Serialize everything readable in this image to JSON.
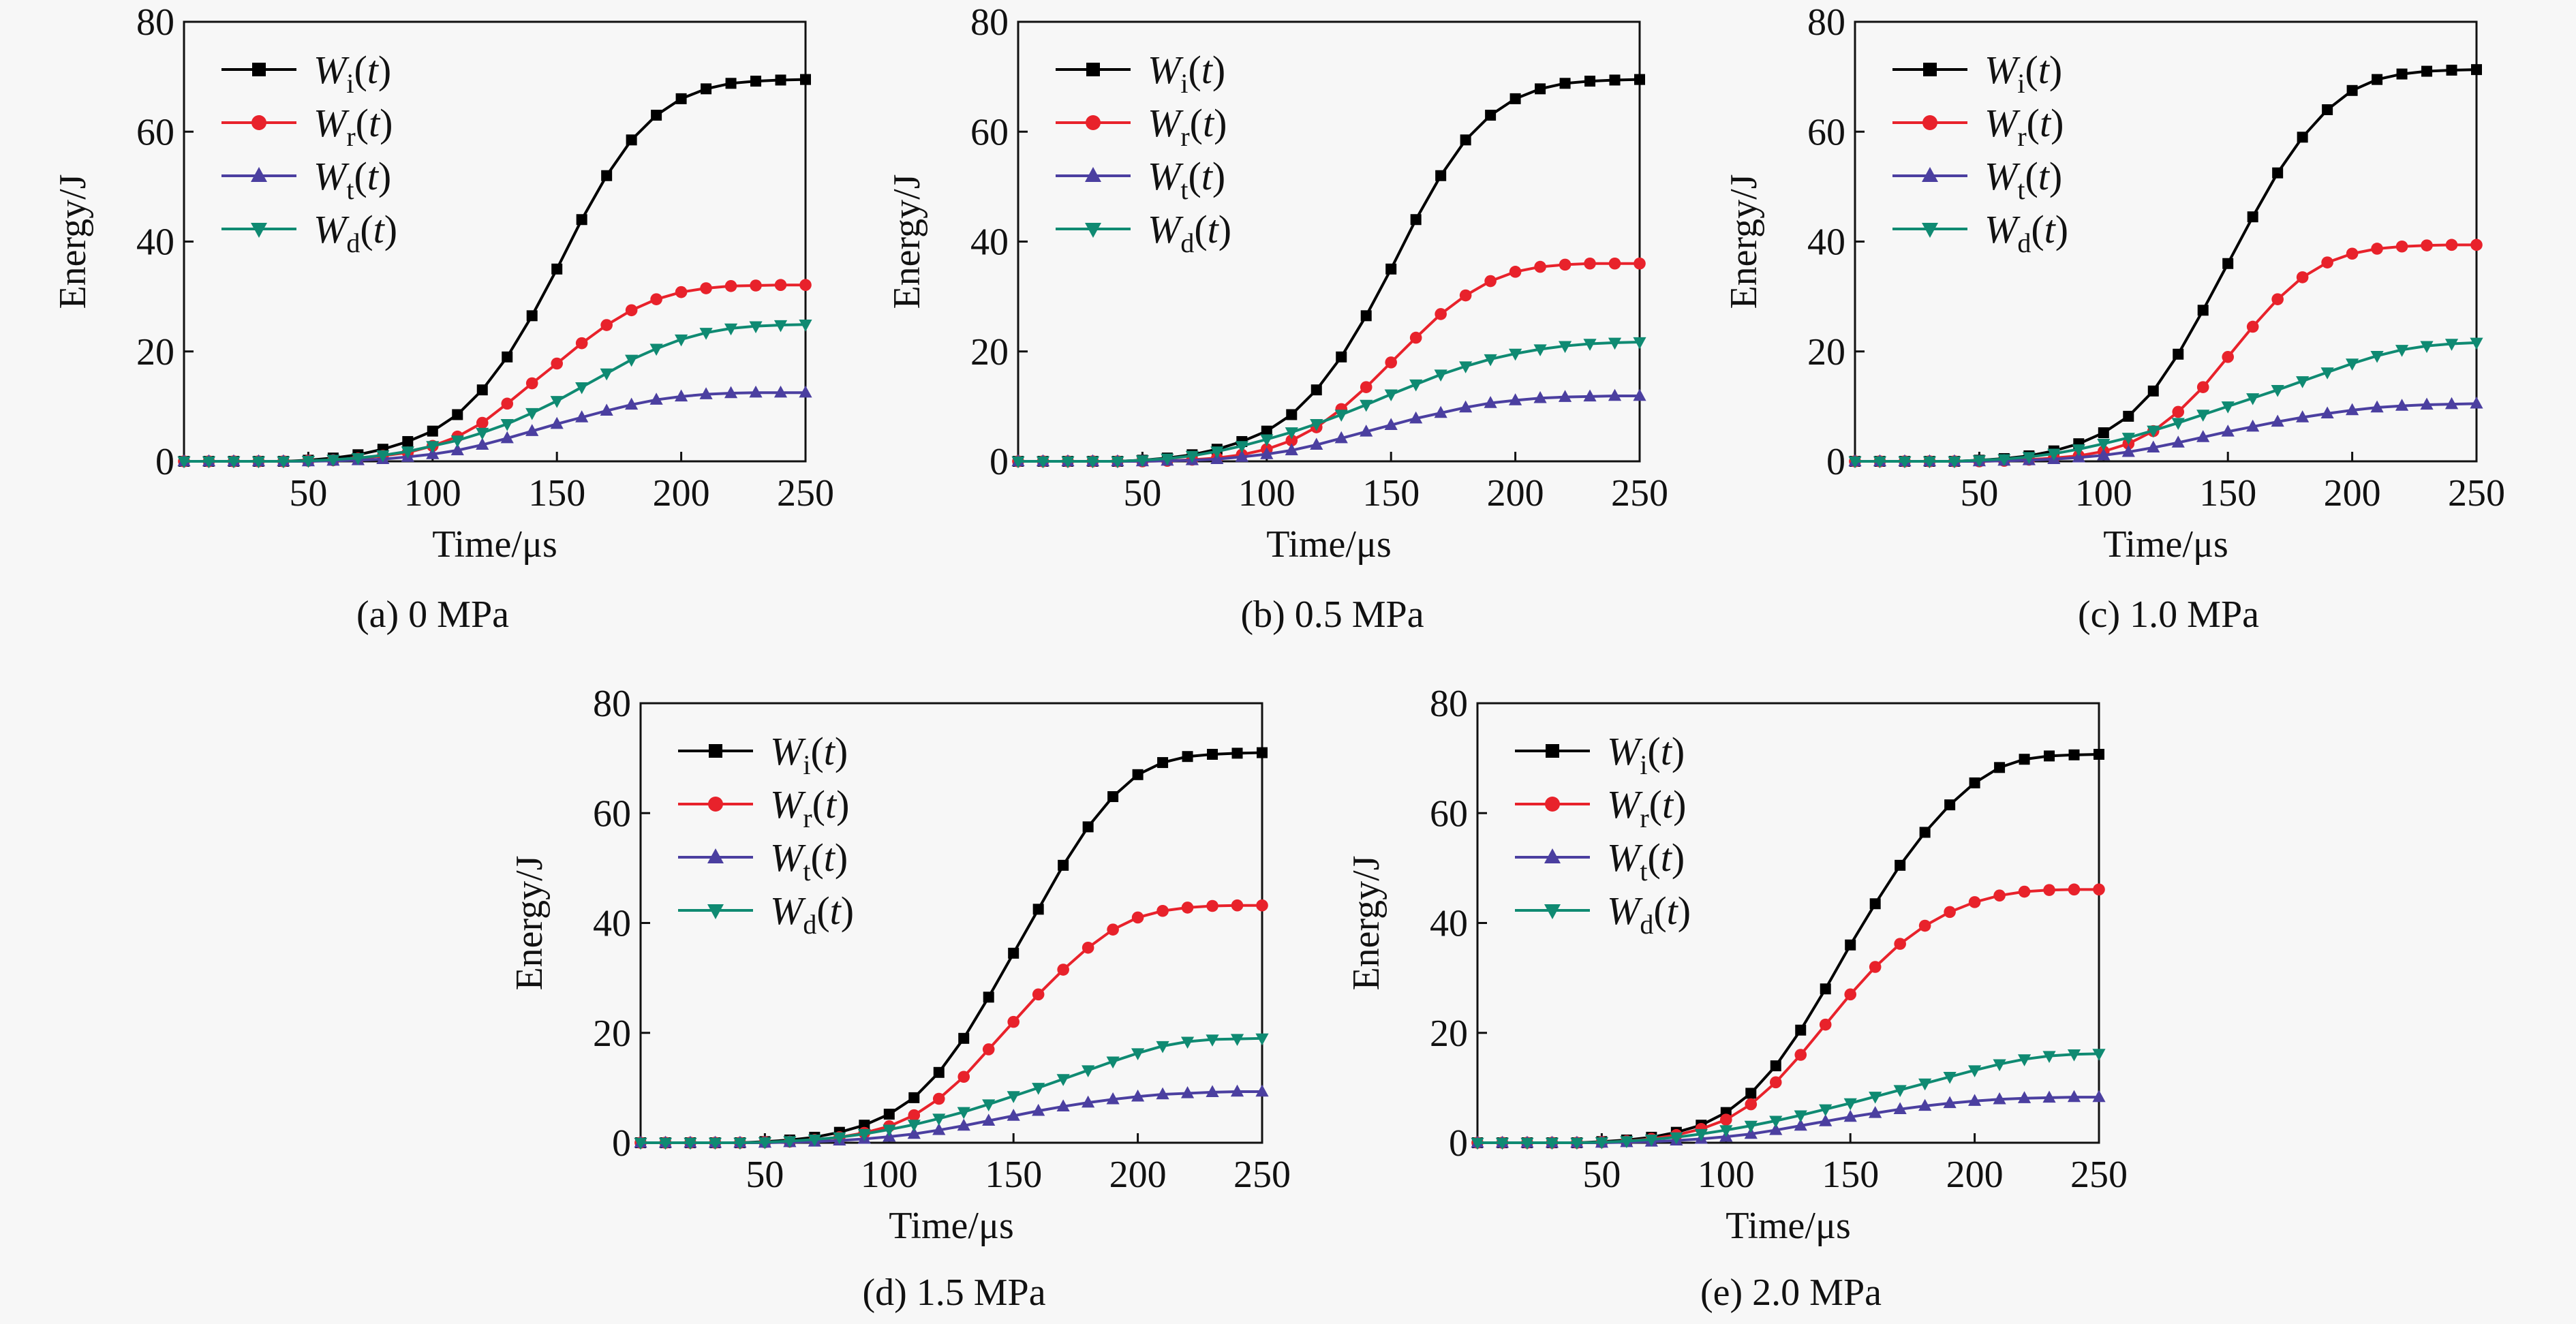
{
  "figure": {
    "legend_labels": [
      {
        "main": "W",
        "sub": "i",
        "arg": "t"
      },
      {
        "main": "W",
        "sub": "r",
        "arg": "t"
      },
      {
        "main": "W",
        "sub": "t",
        "arg": "t"
      },
      {
        "main": "W",
        "sub": "d",
        "arg": "t"
      }
    ],
    "colors": {
      "Wi": "#000000",
      "Wr": "#e8222b",
      "Wt": "#4b3fa0",
      "Wd": "#0f8a72"
    },
    "markers": {
      "Wi": "square",
      "Wr": "circle",
      "Wt": "triangle-up",
      "Wd": "triangle-down"
    }
  },
  "chart_data": [
    {
      "type": "line",
      "caption": "(a) 0 MPa",
      "xlabel": "Time/μs",
      "ylabel": "Energy/J",
      "xlim": [
        0,
        250
      ],
      "ylim": [
        0,
        80
      ],
      "xticks": [
        50,
        100,
        150,
        200,
        250
      ],
      "yticks": [
        0,
        20,
        40,
        60,
        80
      ],
      "x": [
        0,
        10,
        20,
        30,
        40,
        50,
        60,
        70,
        80,
        90,
        100,
        110,
        120,
        130,
        140,
        150,
        160,
        170,
        180,
        190,
        200,
        210,
        220,
        230,
        240,
        250
      ],
      "series": [
        {
          "key": "Wi",
          "values": [
            0,
            0,
            0,
            0,
            0,
            0.2,
            0.6,
            1.2,
            2.2,
            3.6,
            5.5,
            8.5,
            13.0,
            19.0,
            26.5,
            35.0,
            44.0,
            52.0,
            58.5,
            63.0,
            66.0,
            67.8,
            68.8,
            69.2,
            69.4,
            69.5
          ]
        },
        {
          "key": "Wr",
          "values": [
            0,
            0,
            0,
            0,
            0,
            0.1,
            0.2,
            0.5,
            1.0,
            1.6,
            2.8,
            4.5,
            7.0,
            10.5,
            14.2,
            17.8,
            21.5,
            24.8,
            27.5,
            29.5,
            30.8,
            31.5,
            31.9,
            32.0,
            32.1,
            32.1
          ]
        },
        {
          "key": "Wt",
          "values": [
            0,
            0,
            0,
            0,
            0,
            0,
            0.1,
            0.2,
            0.4,
            0.8,
            1.3,
            2.0,
            3.0,
            4.2,
            5.5,
            6.8,
            8.0,
            9.2,
            10.3,
            11.2,
            11.8,
            12.2,
            12.4,
            12.5,
            12.5,
            12.5
          ]
        },
        {
          "key": "Wd",
          "values": [
            0,
            0,
            0,
            0,
            0,
            0.1,
            0.3,
            0.6,
            1.1,
            1.8,
            2.8,
            3.8,
            5.2,
            6.8,
            8.8,
            11.0,
            13.5,
            16.0,
            18.5,
            20.5,
            22.2,
            23.4,
            24.2,
            24.6,
            24.8,
            24.9
          ]
        }
      ]
    },
    {
      "type": "line",
      "caption": "(b) 0.5 MPa",
      "xlabel": "Time/μs",
      "ylabel": "Energy/J",
      "xlim": [
        0,
        250
      ],
      "ylim": [
        0,
        80
      ],
      "xticks": [
        50,
        100,
        150,
        200,
        250
      ],
      "yticks": [
        0,
        20,
        40,
        60,
        80
      ],
      "x": [
        0,
        10,
        20,
        30,
        40,
        50,
        60,
        70,
        80,
        90,
        100,
        110,
        120,
        130,
        140,
        150,
        160,
        170,
        180,
        190,
        200,
        210,
        220,
        230,
        240,
        250
      ],
      "series": [
        {
          "key": "Wi",
          "values": [
            0,
            0,
            0,
            0,
            0,
            0.2,
            0.6,
            1.2,
            2.2,
            3.6,
            5.5,
            8.5,
            13.0,
            19.0,
            26.5,
            35.0,
            44.0,
            52.0,
            58.5,
            63.0,
            66.0,
            67.8,
            68.8,
            69.2,
            69.4,
            69.5
          ]
        },
        {
          "key": "Wr",
          "values": [
            0,
            0,
            0,
            0,
            0,
            0,
            0.1,
            0.3,
            0.6,
            1.2,
            2.2,
            3.8,
            6.2,
            9.5,
            13.5,
            18.0,
            22.5,
            26.8,
            30.2,
            32.8,
            34.5,
            35.4,
            35.8,
            36.0,
            36.0,
            36.0
          ]
        },
        {
          "key": "Wt",
          "values": [
            0,
            0,
            0,
            0,
            0,
            0,
            0.1,
            0.2,
            0.4,
            0.8,
            1.3,
            2.0,
            3.0,
            4.2,
            5.4,
            6.6,
            7.8,
            8.8,
            9.8,
            10.6,
            11.1,
            11.5,
            11.7,
            11.8,
            11.9,
            11.9
          ]
        },
        {
          "key": "Wd",
          "values": [
            0,
            0,
            0,
            0,
            0,
            0.2,
            0.5,
            1.0,
            1.8,
            2.8,
            4.0,
            5.3,
            6.8,
            8.5,
            10.3,
            12.2,
            14.0,
            15.8,
            17.3,
            18.6,
            19.6,
            20.4,
            21.0,
            21.4,
            21.6,
            21.7
          ]
        }
      ]
    },
    {
      "type": "line",
      "caption": "(c) 1.0 MPa",
      "xlabel": "Time/μs",
      "ylabel": "Energy/J",
      "xlim": [
        0,
        250
      ],
      "ylim": [
        0,
        80
      ],
      "xticks": [
        50,
        100,
        150,
        200,
        250
      ],
      "yticks": [
        0,
        20,
        40,
        60,
        80
      ],
      "x": [
        0,
        10,
        20,
        30,
        40,
        50,
        60,
        70,
        80,
        90,
        100,
        110,
        120,
        130,
        140,
        150,
        160,
        170,
        180,
        190,
        200,
        210,
        220,
        230,
        240,
        250
      ],
      "series": [
        {
          "key": "Wi",
          "values": [
            0,
            0,
            0,
            0,
            0,
            0.2,
            0.5,
            1.0,
            1.9,
            3.2,
            5.2,
            8.2,
            12.8,
            19.5,
            27.5,
            36.0,
            44.5,
            52.5,
            59.0,
            64.0,
            67.5,
            69.5,
            70.5,
            71.0,
            71.2,
            71.3
          ]
        },
        {
          "key": "Wr",
          "values": [
            0,
            0,
            0,
            0,
            0,
            0,
            0.1,
            0.3,
            0.6,
            1.0,
            1.8,
            3.2,
            5.5,
            9.0,
            13.5,
            19.0,
            24.5,
            29.5,
            33.5,
            36.2,
            37.8,
            38.7,
            39.1,
            39.3,
            39.4,
            39.4
          ]
        },
        {
          "key": "Wt",
          "values": [
            0,
            0,
            0,
            0,
            0,
            0,
            0.1,
            0.2,
            0.4,
            0.7,
            1.1,
            1.7,
            2.5,
            3.4,
            4.4,
            5.4,
            6.3,
            7.2,
            8.0,
            8.7,
            9.3,
            9.8,
            10.1,
            10.3,
            10.4,
            10.5
          ]
        },
        {
          "key": "Wd",
          "values": [
            0,
            0,
            0,
            0,
            0,
            0.2,
            0.4,
            0.8,
            1.4,
            2.2,
            3.2,
            4.3,
            5.6,
            7.0,
            8.5,
            10.0,
            11.5,
            13.0,
            14.6,
            16.2,
            17.8,
            19.2,
            20.3,
            21.0,
            21.4,
            21.6
          ]
        }
      ]
    },
    {
      "type": "line",
      "caption": "(d) 1.5 MPa",
      "xlabel": "Time/μs",
      "ylabel": "Energy/J",
      "xlim": [
        0,
        250
      ],
      "ylim": [
        0,
        80
      ],
      "xticks": [
        50,
        100,
        150,
        200,
        250
      ],
      "yticks": [
        0,
        20,
        40,
        60,
        80
      ],
      "x": [
        0,
        10,
        20,
        30,
        40,
        50,
        60,
        70,
        80,
        90,
        100,
        110,
        120,
        130,
        140,
        150,
        160,
        170,
        180,
        190,
        200,
        210,
        220,
        230,
        240,
        250
      ],
      "series": [
        {
          "key": "Wi",
          "values": [
            0,
            0,
            0,
            0,
            0,
            0.2,
            0.5,
            1.0,
            1.9,
            3.2,
            5.2,
            8.2,
            12.8,
            19.0,
            26.5,
            34.5,
            42.5,
            50.5,
            57.5,
            63.0,
            67.0,
            69.2,
            70.3,
            70.7,
            70.9,
            71.0
          ]
        },
        {
          "key": "Wr",
          "values": [
            0,
            0,
            0,
            0,
            0,
            0.1,
            0.2,
            0.5,
            1.0,
            1.8,
            3.0,
            5.0,
            8.0,
            12.0,
            17.0,
            22.0,
            27.0,
            31.5,
            35.5,
            38.8,
            41.0,
            42.2,
            42.8,
            43.1,
            43.2,
            43.2
          ]
        },
        {
          "key": "Wt",
          "values": [
            0,
            0,
            0,
            0,
            0,
            0,
            0.1,
            0.2,
            0.4,
            0.7,
            1.1,
            1.6,
            2.3,
            3.1,
            4.0,
            4.9,
            5.8,
            6.6,
            7.3,
            7.9,
            8.4,
            8.8,
            9.0,
            9.2,
            9.3,
            9.3
          ]
        },
        {
          "key": "Wd",
          "values": [
            0,
            0,
            0,
            0,
            0,
            0.1,
            0.3,
            0.6,
            1.0,
            1.6,
            2.4,
            3.3,
            4.4,
            5.6,
            7.0,
            8.5,
            10.0,
            11.6,
            13.2,
            14.8,
            16.3,
            17.6,
            18.4,
            18.8,
            18.9,
            19.0
          ]
        }
      ]
    },
    {
      "type": "line",
      "caption": "(e) 2.0 MPa",
      "xlabel": "Time/μs",
      "ylabel": "Energy/J",
      "xlim": [
        0,
        250
      ],
      "ylim": [
        0,
        80
      ],
      "xticks": [
        50,
        100,
        150,
        200,
        250
      ],
      "yticks": [
        0,
        20,
        40,
        60,
        80
      ],
      "x": [
        0,
        10,
        20,
        30,
        40,
        50,
        60,
        70,
        80,
        90,
        100,
        110,
        120,
        130,
        140,
        150,
        160,
        170,
        180,
        190,
        200,
        210,
        220,
        230,
        240,
        250
      ],
      "series": [
        {
          "key": "Wi",
          "values": [
            0,
            0,
            0,
            0,
            0,
            0.2,
            0.5,
            1.0,
            1.9,
            3.2,
            5.5,
            9.0,
            14.0,
            20.5,
            28.0,
            36.0,
            43.5,
            50.5,
            56.5,
            61.5,
            65.5,
            68.3,
            69.8,
            70.4,
            70.6,
            70.7
          ]
        },
        {
          "key": "Wr",
          "values": [
            0,
            0,
            0,
            0,
            0,
            0.1,
            0.3,
            0.7,
            1.4,
            2.5,
            4.2,
            7.0,
            11.0,
            16.0,
            21.5,
            27.0,
            32.0,
            36.2,
            39.5,
            42.0,
            43.8,
            45.0,
            45.7,
            46.0,
            46.1,
            46.1
          ]
        },
        {
          "key": "Wt",
          "values": [
            0,
            0,
            0,
            0,
            0,
            0,
            0.1,
            0.2,
            0.4,
            0.7,
            1.1,
            1.6,
            2.3,
            3.1,
            3.9,
            4.7,
            5.4,
            6.1,
            6.7,
            7.2,
            7.6,
            7.9,
            8.1,
            8.2,
            8.3,
            8.3
          ]
        },
        {
          "key": "Wd",
          "values": [
            0,
            0,
            0,
            0,
            0,
            0.1,
            0.3,
            0.6,
            1.0,
            1.6,
            2.3,
            3.1,
            4.0,
            5.0,
            6.1,
            7.2,
            8.4,
            9.6,
            10.8,
            12.0,
            13.2,
            14.3,
            15.2,
            15.8,
            16.1,
            16.2
          ]
        }
      ]
    }
  ]
}
